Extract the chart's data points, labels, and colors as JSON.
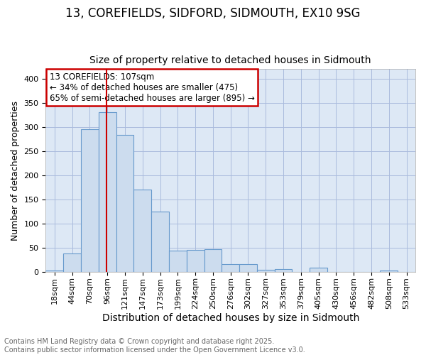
{
  "title1": "13, COREFIELDS, SIDFORD, SIDMOUTH, EX10 9SG",
  "title2": "Size of property relative to detached houses in Sidmouth",
  "xlabel": "Distribution of detached houses by size in Sidmouth",
  "ylabel": "Number of detached properties",
  "categories": [
    "18sqm",
    "44sqm",
    "70sqm",
    "96sqm",
    "121sqm",
    "147sqm",
    "173sqm",
    "199sqm",
    "224sqm",
    "250sqm",
    "276sqm",
    "302sqm",
    "327sqm",
    "353sqm",
    "379sqm",
    "405sqm",
    "430sqm",
    "456sqm",
    "482sqm",
    "508sqm",
    "533sqm"
  ],
  "values": [
    3,
    38,
    296,
    330,
    284,
    171,
    125,
    43,
    45,
    46,
    15,
    16,
    4,
    5,
    0,
    8,
    0,
    0,
    0,
    2,
    0
  ],
  "bar_color": "#ccdcee",
  "bar_edge_color": "#6699cc",
  "vline_color": "#cc0000",
  "annotation_text": "13 COREFIELDS: 107sqm\n← 34% of detached houses are smaller (475)\n65% of semi-detached houses are larger (895) →",
  "annotation_box_color": "white",
  "annotation_box_edge_color": "#cc0000",
  "ylim": [
    0,
    420
  ],
  "yticks": [
    0,
    50,
    100,
    150,
    200,
    250,
    300,
    350,
    400
  ],
  "grid_color": "#aabbdd",
  "bg_color": "#dde8f5",
  "footer_text": "Contains HM Land Registry data © Crown copyright and database right 2025.\nContains public sector information licensed under the Open Government Licence v3.0.",
  "title1_fontsize": 12,
  "title2_fontsize": 10,
  "xlabel_fontsize": 10,
  "ylabel_fontsize": 9,
  "tick_fontsize": 8,
  "footer_fontsize": 7
}
